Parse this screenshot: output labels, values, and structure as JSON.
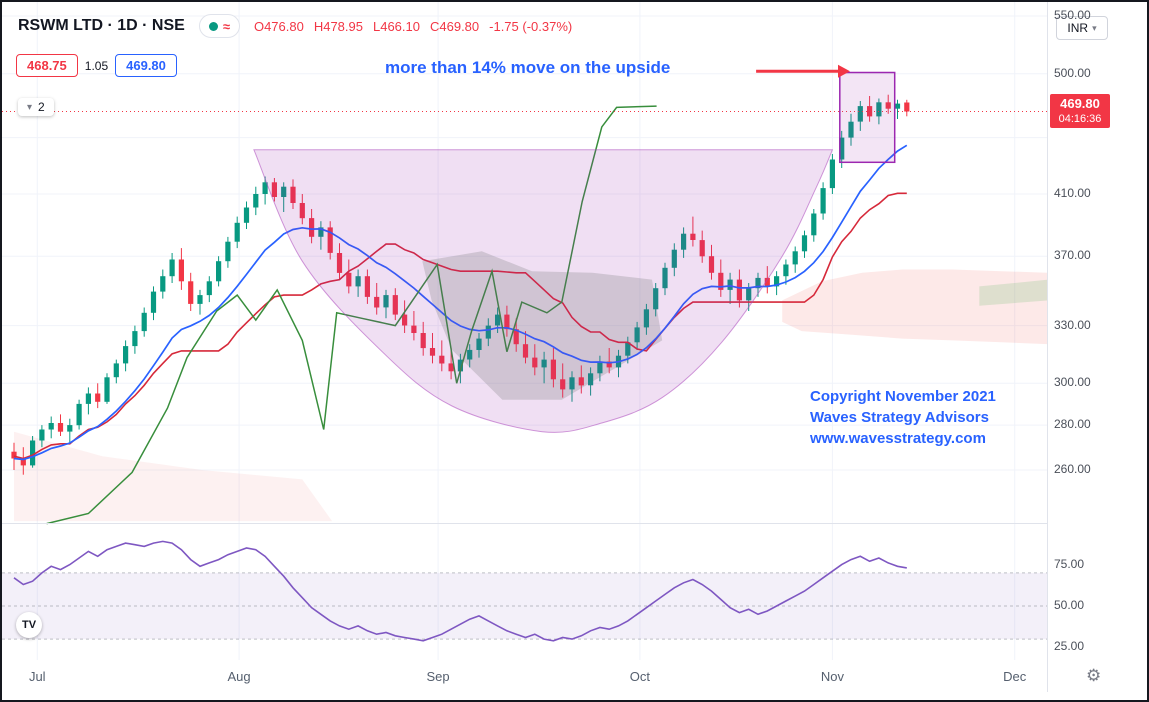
{
  "header": {
    "symbol_title": "RSWM LTD · 1D · NSE",
    "ohlc": {
      "open": "O476.80",
      "high": "H478.95",
      "low": "L466.10",
      "close": "C469.80",
      "change": "-1.75 (-0.37%)"
    },
    "sell_button": "468.75",
    "spread": "1.05",
    "buy_button": "469.80",
    "collapse_count": "2",
    "currency_label": "INR"
  },
  "icons": {
    "wave": "≈",
    "chevron_down": "▾",
    "gear": "⚙",
    "logo": "TV"
  },
  "annotations": {
    "upside_note": "more than 14% move on the upside",
    "copyright_lines": [
      "Copyright November 2021",
      "Waves Strategy Advisors",
      "www.wavesstrategy.com"
    ]
  },
  "price_axis": {
    "labels": [
      "550.00",
      "500.00",
      "410.00",
      "370.00",
      "330.00",
      "300.00",
      "280.00",
      "260.00"
    ],
    "badge": {
      "price": "469.80",
      "countdown": "04:16:36"
    },
    "rsi_labels": [
      "75.00",
      "50.00",
      "25.00"
    ]
  },
  "colors": {
    "background": "#ffffff",
    "text": "#131722",
    "muted": "#787b86",
    "accent_red": "#f23645",
    "accent_blue": "#2962ff",
    "candle_up": "#089981",
    "candle_down": "#f23645",
    "ma_fast": "#2962ff",
    "baseline": "#d6293a",
    "lagging": "#388e3c",
    "pattern_purple": "#9c27b0",
    "rsi_purple": "#7e57c2",
    "grid": "#f0f3fa"
  },
  "chart_data": {
    "type": "candlestick",
    "title": "RSWM LTD · 1D · NSE",
    "timeframe": "1D",
    "exchange": "NSE",
    "price_scale": "logarithmic",
    "ylim": [
      250,
      555
    ],
    "price_gridlines": [
      550,
      500,
      450,
      410,
      370,
      330,
      300,
      280,
      260
    ],
    "months": [
      {
        "label": "Jul",
        "bar": 2.5
      },
      {
        "label": "Aug",
        "bar": 24.2
      },
      {
        "label": "Sep",
        "bar": 45.6
      },
      {
        "label": "Oct",
        "bar": 67.3
      },
      {
        "label": "Nov",
        "bar": 88.0
      },
      {
        "label": "Dec",
        "bar": 107.6
      }
    ],
    "last_trade": {
      "open": 476.8,
      "high": 478.95,
      "low": 466.1,
      "close": 469.8,
      "change": -1.75,
      "change_pct": -0.37
    },
    "last_price_line": 469.8,
    "ma_fast": {
      "kind": "ema",
      "period": 13
    },
    "baseline": {
      "kind": "donchian-midpoint",
      "period": 26
    },
    "candles": [
      [
        268,
        272,
        260,
        265
      ],
      [
        265,
        270,
        258,
        262
      ],
      [
        262,
        275,
        261,
        273
      ],
      [
        273,
        280,
        270,
        278
      ],
      [
        278,
        284,
        274,
        281
      ],
      [
        281,
        285,
        275,
        277
      ],
      [
        277,
        283,
        272,
        280
      ],
      [
        280,
        292,
        278,
        290
      ],
      [
        290,
        298,
        285,
        295
      ],
      [
        295,
        300,
        288,
        291
      ],
      [
        291,
        305,
        290,
        303
      ],
      [
        303,
        312,
        300,
        310
      ],
      [
        310,
        322,
        306,
        319
      ],
      [
        319,
        330,
        315,
        327
      ],
      [
        327,
        340,
        324,
        337
      ],
      [
        337,
        352,
        333,
        349
      ],
      [
        349,
        362,
        345,
        358
      ],
      [
        358,
        372,
        354,
        368
      ],
      [
        368,
        375,
        350,
        355
      ],
      [
        355,
        360,
        338,
        342
      ],
      [
        342,
        350,
        336,
        347
      ],
      [
        347,
        358,
        343,
        355
      ],
      [
        355,
        370,
        352,
        367
      ],
      [
        367,
        382,
        363,
        379
      ],
      [
        379,
        395,
        375,
        391
      ],
      [
        391,
        405,
        387,
        401
      ],
      [
        401,
        415,
        396,
        410
      ],
      [
        410,
        422,
        403,
        418
      ],
      [
        418,
        421,
        405,
        408
      ],
      [
        408,
        418,
        398,
        415
      ],
      [
        415,
        420,
        400,
        404
      ],
      [
        404,
        410,
        390,
        394
      ],
      [
        394,
        400,
        378,
        382
      ],
      [
        382,
        392,
        374,
        388
      ],
      [
        388,
        392,
        368,
        372
      ],
      [
        372,
        378,
        356,
        360
      ],
      [
        360,
        368,
        348,
        352
      ],
      [
        352,
        362,
        346,
        358
      ],
      [
        358,
        362,
        342,
        346
      ],
      [
        346,
        354,
        336,
        340
      ],
      [
        340,
        350,
        334,
        347
      ],
      [
        347,
        351,
        333,
        336
      ],
      [
        336,
        344,
        326,
        330
      ],
      [
        330,
        338,
        322,
        326
      ],
      [
        326,
        332,
        314,
        318
      ],
      [
        318,
        326,
        310,
        314
      ],
      [
        314,
        322,
        306,
        310
      ],
      [
        310,
        318,
        302,
        306
      ],
      [
        306,
        315,
        300,
        312
      ],
      [
        312,
        320,
        308,
        317
      ],
      [
        317,
        326,
        313,
        323
      ],
      [
        323,
        334,
        319,
        330
      ],
      [
        330,
        340,
        326,
        336
      ],
      [
        336,
        341,
        324,
        328
      ],
      [
        328,
        334,
        316,
        320
      ],
      [
        320,
        327,
        310,
        313
      ],
      [
        313,
        320,
        304,
        308
      ],
      [
        308,
        316,
        300,
        312
      ],
      [
        312,
        318,
        298,
        302
      ],
      [
        302,
        310,
        293,
        297
      ],
      [
        297,
        306,
        291,
        303
      ],
      [
        303,
        309,
        295,
        299
      ],
      [
        299,
        308,
        294,
        305
      ],
      [
        305,
        314,
        301,
        311
      ],
      [
        311,
        318,
        305,
        308
      ],
      [
        308,
        317,
        303,
        314
      ],
      [
        314,
        324,
        310,
        321
      ],
      [
        321,
        332,
        317,
        329
      ],
      [
        329,
        342,
        325,
        339
      ],
      [
        339,
        354,
        335,
        351
      ],
      [
        351,
        366,
        347,
        363
      ],
      [
        363,
        378,
        358,
        374
      ],
      [
        374,
        388,
        369,
        384
      ],
      [
        384,
        395,
        376,
        380
      ],
      [
        380,
        386,
        366,
        370
      ],
      [
        370,
        377,
        356,
        360
      ],
      [
        360,
        368,
        346,
        350
      ],
      [
        350,
        360,
        342,
        356
      ],
      [
        356,
        362,
        340,
        344
      ],
      [
        344,
        354,
        338,
        351
      ],
      [
        351,
        360,
        346,
        357
      ],
      [
        357,
        364,
        348,
        352
      ],
      [
        352,
        361,
        347,
        358
      ],
      [
        358,
        368,
        353,
        365
      ],
      [
        365,
        376,
        360,
        373
      ],
      [
        373,
        386,
        369,
        383
      ],
      [
        383,
        400,
        379,
        397
      ],
      [
        397,
        418,
        393,
        414
      ],
      [
        414,
        438,
        410,
        434
      ],
      [
        434,
        455,
        428,
        450
      ],
      [
        450,
        468,
        444,
        462
      ],
      [
        462,
        478,
        455,
        474
      ],
      [
        474,
        482,
        462,
        466
      ],
      [
        466,
        480,
        460,
        477
      ],
      [
        477,
        483,
        468,
        472
      ],
      [
        472,
        479,
        464,
        476
      ],
      [
        476.8,
        478.95,
        466.1,
        469.8
      ]
    ],
    "lagging_line": [
      [
        3.5,
        238
      ],
      [
        8,
        242
      ],
      [
        12.7,
        259
      ],
      [
        16.5,
        288
      ],
      [
        18.6,
        313
      ],
      [
        21.8,
        338
      ],
      [
        24,
        347
      ],
      [
        26,
        333
      ],
      [
        28.3,
        350
      ],
      [
        31,
        322
      ],
      [
        33.3,
        278
      ],
      [
        34.7,
        337
      ],
      [
        37.4,
        334
      ],
      [
        41,
        330
      ],
      [
        45.5,
        365
      ],
      [
        47.6,
        300
      ],
      [
        49.2,
        327
      ],
      [
        51.4,
        361
      ],
      [
        53,
        316
      ],
      [
        54.6,
        343
      ],
      [
        57.3,
        337
      ],
      [
        58.9,
        343
      ],
      [
        61.1,
        405
      ],
      [
        63.2,
        458
      ],
      [
        64.8,
        473
      ],
      [
        69.1,
        474
      ]
    ],
    "clouds": [
      {
        "color": "#7a8f7a",
        "opacity": 0.28,
        "points": [
          [
            43.9,
            367
          ],
          [
            50.3,
            373
          ],
          [
            55.7,
            361
          ],
          [
            62.2,
            360
          ],
          [
            68.6,
            356
          ],
          [
            69.7,
            322
          ],
          [
            58.9,
            292
          ],
          [
            52.5,
            292
          ],
          [
            47.1,
            317
          ],
          [
            44.9,
            344
          ]
        ]
      },
      {
        "color": "#ef5350",
        "opacity": 0.13,
        "points": [
          [
            82.6,
            344
          ],
          [
            86.9,
            355
          ],
          [
            91.2,
            360
          ],
          [
            95.5,
            362
          ],
          [
            100.9,
            362
          ],
          [
            106.2,
            361
          ],
          [
            111.3,
            360
          ],
          [
            111.3,
            320
          ],
          [
            106.2,
            321
          ],
          [
            100.9,
            322
          ],
          [
            95.5,
            323
          ],
          [
            90.1,
            325
          ],
          [
            84.7,
            327
          ],
          [
            82.6,
            332
          ]
        ]
      },
      {
        "color": "#66bb6a",
        "opacity": 0.2,
        "points": [
          [
            103.8,
            352
          ],
          [
            111.3,
            356
          ],
          [
            111.3,
            344
          ],
          [
            103.8,
            341
          ]
        ]
      },
      {
        "color": "#ef9a9a",
        "opacity": 0.14,
        "points": [
          [
            0,
            277
          ],
          [
            9.5,
            266
          ],
          [
            20.2,
            260
          ],
          [
            31,
            256
          ],
          [
            34.2,
            239
          ],
          [
            0,
            239
          ]
        ]
      }
    ],
    "cup_pattern": {
      "fill": "#9c27b0",
      "opacity": 0.15,
      "stroke": "#ab47bc",
      "top_price": 441,
      "points": [
        [
          25.8,
          441
        ],
        [
          31,
          367
        ],
        [
          39.6,
          316
        ],
        [
          47.1,
          289
        ],
        [
          56.8,
          277
        ],
        [
          63.2,
          281
        ],
        [
          69.7,
          293
        ],
        [
          76.1,
          321
        ],
        [
          82.6,
          370
        ],
        [
          86.3,
          415
        ],
        [
          88,
          441
        ]
      ]
    },
    "breakout_box": {
      "bar_start": 88.8,
      "bar_end": 94.7,
      "price_top": 501,
      "price_bottom": 432,
      "color": "#9c27b0"
    },
    "arrow": {
      "from_bar": 79.8,
      "to_bar": 88.6,
      "price": 502
    },
    "rsi": {
      "band": [
        30,
        70
      ],
      "levels": [
        30,
        50,
        70
      ],
      "values": [
        67,
        63,
        65,
        70,
        74,
        72,
        75,
        79,
        83,
        80,
        84,
        86,
        88,
        87,
        86,
        88,
        89,
        88,
        84,
        78,
        74,
        76,
        78,
        81,
        83,
        85,
        84,
        80,
        74,
        68,
        61,
        55,
        49,
        45,
        41,
        38,
        36,
        38,
        35,
        33,
        34,
        32,
        31,
        30,
        29,
        31,
        33,
        36,
        39,
        42,
        44,
        41,
        38,
        35,
        33,
        31,
        33,
        30,
        29,
        31,
        30,
        32,
        35,
        37,
        36,
        38,
        41,
        45,
        49,
        53,
        57,
        61,
        64,
        66,
        63,
        59,
        54,
        49,
        46,
        48,
        45,
        47,
        50,
        53,
        56,
        59,
        63,
        67,
        71,
        75,
        78,
        80,
        77,
        79,
        76,
        74,
        73
      ]
    }
  }
}
